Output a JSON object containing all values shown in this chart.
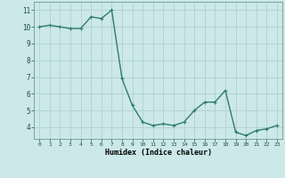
{
  "x": [
    0,
    1,
    2,
    3,
    4,
    5,
    6,
    7,
    8,
    9,
    10,
    11,
    12,
    13,
    14,
    15,
    16,
    17,
    18,
    19,
    20,
    21,
    22,
    23
  ],
  "y": [
    10.0,
    10.1,
    10.0,
    9.9,
    9.9,
    10.6,
    10.5,
    11.0,
    6.9,
    5.3,
    4.3,
    4.1,
    4.2,
    4.1,
    4.3,
    5.0,
    5.5,
    5.5,
    6.2,
    3.7,
    3.5,
    3.8,
    3.9,
    4.1
  ],
  "line_color": "#2e7d6e",
  "bg_color": "#cce8e8",
  "grid_color": "#aacece",
  "xlabel": "Humidex (Indice chaleur)",
  "xlim": [
    -0.5,
    23.5
  ],
  "ylim": [
    3.3,
    11.5
  ],
  "yticks": [
    4,
    5,
    6,
    7,
    8,
    9,
    10,
    11
  ],
  "xtick_labels": [
    "0",
    "1",
    "2",
    "3",
    "4",
    "5",
    "6",
    "7",
    "8",
    "9",
    "10",
    "11",
    "12",
    "13",
    "14",
    "15",
    "16",
    "17",
    "18",
    "19",
    "20",
    "21",
    "22",
    "23"
  ],
  "marker": "+",
  "marker_size": 3,
  "linewidth": 1.0
}
